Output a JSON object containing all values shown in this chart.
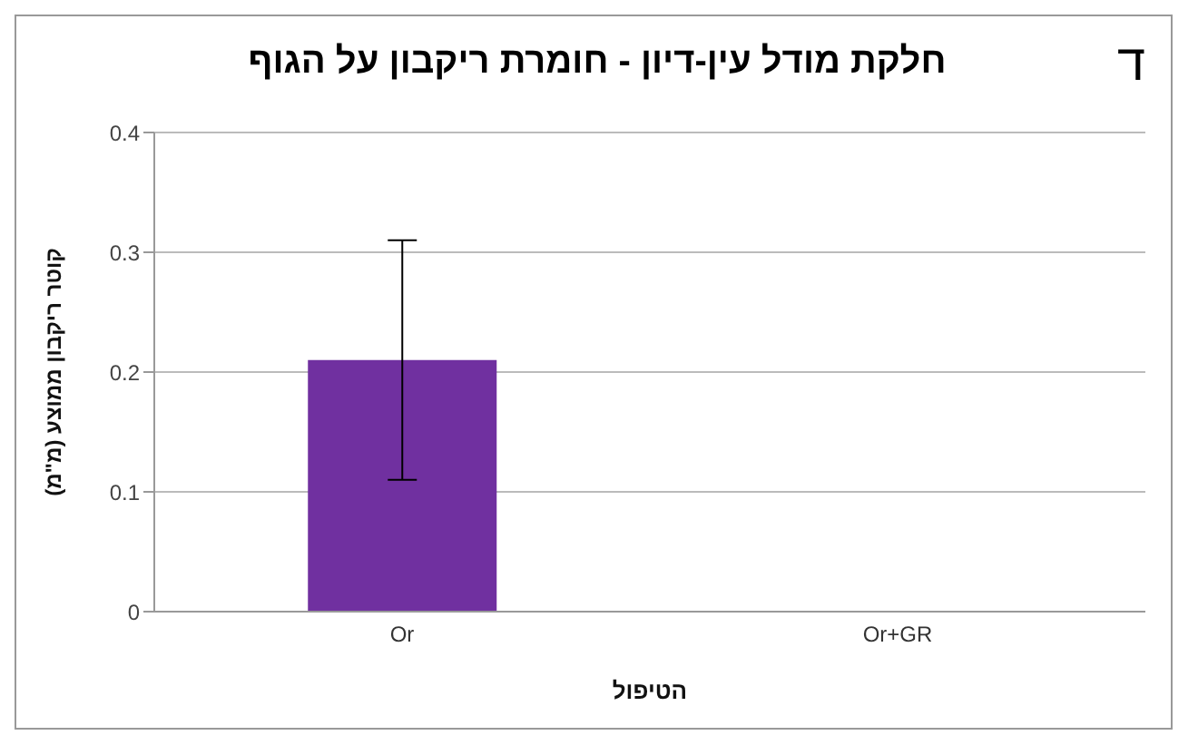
{
  "chart_data": {
    "type": "bar",
    "title": "חלקת מודל עין-דיון - חומרת ריקבון על הגוף",
    "annotations": [
      "ד"
    ],
    "xlabel": "הטיפול",
    "ylabel": "קוטר ריקבון ממוצע (מ\"מ)",
    "categories": [
      "Or",
      "Or+GR"
    ],
    "values": [
      0.21,
      0
    ],
    "errors": [
      0.1,
      null
    ],
    "color": "#7030a0",
    "ylim": [
      0,
      0.4
    ],
    "yticks": [
      0,
      0.1,
      0.2,
      0.3,
      0.4
    ],
    "grid": "y",
    "legend": false
  }
}
